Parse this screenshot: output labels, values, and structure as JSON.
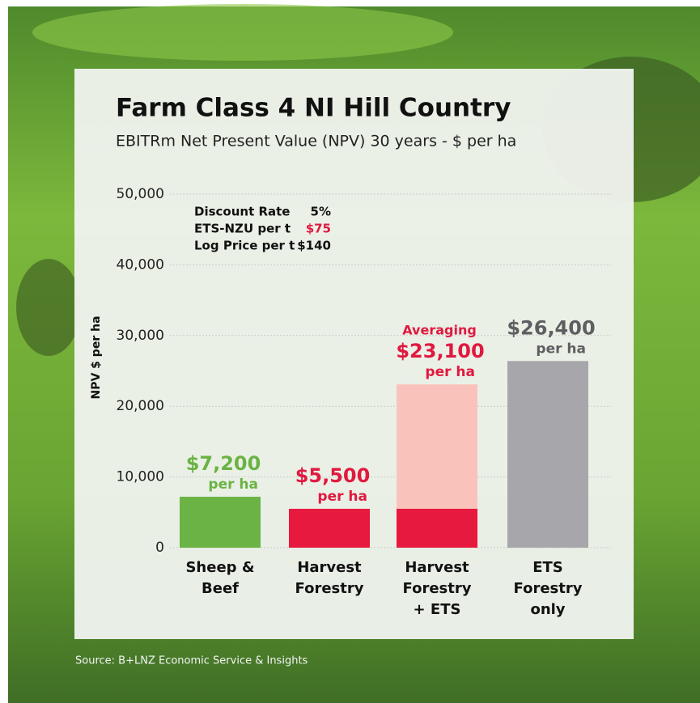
{
  "chart_data": {
    "type": "bar",
    "title": "Farm Class 4 NI Hill Country",
    "subtitle": "EBITRm Net Present Value (NPV) 30 years - $ per ha",
    "y_label": "NPV $ per ha",
    "categories": [
      [
        "Sheep &",
        "Beef"
      ],
      [
        "Harvest",
        "Forestry"
      ],
      [
        "Harvest",
        "Forestry",
        "+ ETS"
      ],
      [
        "ETS",
        "Forestry",
        "only"
      ]
    ],
    "values": [
      7200,
      5500,
      23100,
      26400
    ],
    "value_labels": [
      "$7,200",
      "$5,500",
      "$23,100",
      "$26,400"
    ],
    "colors": [
      "#6ab344",
      "#e8193f",
      "#f9c3bb",
      "#a7a7ab"
    ],
    "inner": [
      null,
      null,
      5500,
      null
    ],
    "inner_color": "#e8193f",
    "label_prefix": [
      null,
      null,
      "Averaging",
      null
    ],
    "unit_labels": [
      "per ha",
      "per ha",
      "per ha",
      "per ha"
    ],
    "label_colors": [
      "#6ab344",
      "#e0193f",
      "#e0193f",
      "#5e5e62"
    ],
    "ylim": [
      0,
      50000
    ],
    "yticks": [
      0,
      {
        "value": 10000,
        "label": "10,000"
      },
      {
        "value": 20000,
        "label": "20,000"
      },
      {
        "value": 30000,
        "label": "30,000"
      },
      {
        "value": 40000,
        "label": "40,000"
      },
      {
        "value": 50000,
        "label": "50,000"
      }
    ],
    "grid": true,
    "assumptions": [
      {
        "label": "Discount Rate",
        "value": "5%",
        "color": "#111111"
      },
      {
        "label": "ETS-NZU per t",
        "value": "$75",
        "color": "#e0193f"
      },
      {
        "label": "Log Price per t",
        "value": "$140",
        "color": "#111111"
      }
    ],
    "source": "Source: B+LNZ Economic Service & Insights"
  }
}
